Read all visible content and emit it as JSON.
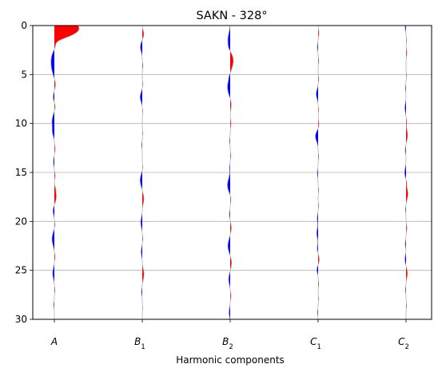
{
  "chart_data": {
    "type": "area",
    "title": "SAKN - 328°",
    "xlabel": "Harmonic components",
    "ylabel": "",
    "ylim": [
      30,
      0
    ],
    "yticks": [
      "0",
      "5",
      "10",
      "15",
      "20",
      "25",
      "30"
    ],
    "ytick_values": [
      0,
      5,
      10,
      15,
      20,
      25,
      30
    ],
    "grid": "horizontal",
    "positive_color": "#ff0000",
    "negative_color": "#0000ff",
    "trace_color": "#aaaaaa",
    "categories": [
      {
        "base": "A",
        "sub": ""
      },
      {
        "base": "B",
        "sub": "1"
      },
      {
        "base": "B",
        "sub": "2"
      },
      {
        "base": "C",
        "sub": "1"
      },
      {
        "base": "C",
        "sub": "2"
      }
    ],
    "amplitude_scale_note": "",
    "series": [
      {
        "name": "",
        "pulses": [
          [
            0.3,
            31.0,
            0.9
          ],
          [
            1.6,
            -6.0,
            0.35
          ],
          [
            3.3,
            -3.5,
            0.7
          ],
          [
            4.4,
            -2.5,
            0.6
          ],
          [
            6.0,
            1.5,
            0.4
          ],
          [
            7.3,
            -1.5,
            0.4
          ],
          [
            8.3,
            1.2,
            0.35
          ],
          [
            9.8,
            -3.0,
            0.6
          ],
          [
            10.9,
            -2.0,
            0.4
          ],
          [
            12.6,
            1.0,
            0.35
          ],
          [
            13.9,
            -1.2,
            0.4
          ],
          [
            15.3,
            1.0,
            0.3
          ],
          [
            16.7,
            1.0,
            0.3
          ],
          [
            17.5,
            2.5,
            0.5
          ],
          [
            18.9,
            -1.8,
            0.4
          ],
          [
            20.4,
            1.0,
            0.3
          ],
          [
            21.8,
            -3.0,
            0.6
          ],
          [
            23.6,
            1.0,
            0.35
          ],
          [
            25.3,
            -2.2,
            0.5
          ],
          [
            27.0,
            0.8,
            0.3
          ],
          [
            28.5,
            -0.8,
            0.3
          ]
        ]
      },
      {
        "name": "",
        "pulses": [
          [
            0.9,
            2.0,
            0.35
          ],
          [
            2.2,
            -2.5,
            0.45
          ],
          [
            4.1,
            0.8,
            0.3
          ],
          [
            6.0,
            0.7,
            0.3
          ],
          [
            7.3,
            -2.8,
            0.45
          ],
          [
            8.7,
            0.6,
            0.3
          ],
          [
            11.0,
            0.6,
            0.3
          ],
          [
            12.2,
            -0.8,
            0.3
          ],
          [
            14.5,
            0.7,
            0.3
          ],
          [
            15.8,
            -2.8,
            0.55
          ],
          [
            17.7,
            2.0,
            0.5
          ],
          [
            20.1,
            -2.0,
            0.5
          ],
          [
            21.8,
            0.8,
            0.3
          ],
          [
            23.1,
            -1.5,
            0.45
          ],
          [
            25.4,
            2.2,
            0.5
          ],
          [
            27.2,
            -1.0,
            0.35
          ],
          [
            28.9,
            0.5,
            0.3
          ]
        ]
      },
      {
        "name": "",
        "pulses": [
          [
            1.5,
            -3.0,
            0.7
          ],
          [
            2.3,
            -1.0,
            0.3
          ],
          [
            3.6,
            4.0,
            0.7
          ],
          [
            5.2,
            -0.8,
            0.3
          ],
          [
            6.3,
            -3.5,
            0.7
          ],
          [
            8.0,
            1.5,
            0.5
          ],
          [
            10.0,
            1.0,
            0.35
          ],
          [
            11.8,
            -0.8,
            0.3
          ],
          [
            13.3,
            0.8,
            0.3
          ],
          [
            14.5,
            -0.8,
            0.3
          ],
          [
            16.3,
            -3.5,
            0.65
          ],
          [
            17.6,
            1.2,
            0.4
          ],
          [
            19.3,
            -1.0,
            0.35
          ],
          [
            20.7,
            1.5,
            0.4
          ],
          [
            22.5,
            -3.0,
            0.6
          ],
          [
            24.2,
            1.8,
            0.5
          ],
          [
            25.9,
            -2.0,
            0.5
          ],
          [
            27.6,
            1.0,
            0.35
          ],
          [
            29.3,
            -1.5,
            0.45
          ]
        ]
      },
      {
        "name": "",
        "pulses": [
          [
            0.8,
            1.0,
            0.35
          ],
          [
            2.2,
            -1.0,
            0.35
          ],
          [
            3.6,
            0.8,
            0.3
          ],
          [
            5.5,
            0.8,
            0.3
          ],
          [
            7.0,
            -2.5,
            0.45
          ],
          [
            8.6,
            0.7,
            0.3
          ],
          [
            10.2,
            1.2,
            0.4
          ],
          [
            11.3,
            -3.5,
            0.5
          ],
          [
            13.4,
            0.7,
            0.3
          ],
          [
            15.1,
            -1.0,
            0.35
          ],
          [
            16.8,
            0.7,
            0.3
          ],
          [
            18.4,
            0.7,
            0.3
          ],
          [
            19.7,
            -1.2,
            0.4
          ],
          [
            21.2,
            -1.8,
            0.45
          ],
          [
            22.8,
            -1.2,
            0.4
          ],
          [
            23.9,
            1.5,
            0.45
          ],
          [
            24.9,
            -1.8,
            0.35
          ],
          [
            26.4,
            0.8,
            0.3
          ],
          [
            27.9,
            0.6,
            0.3
          ],
          [
            29.3,
            -0.8,
            0.3
          ]
        ]
      },
      {
        "name": "",
        "pulses": [
          [
            0.2,
            -1.2,
            0.3
          ],
          [
            1.5,
            0.6,
            0.3
          ],
          [
            2.8,
            1.0,
            0.35
          ],
          [
            5.1,
            0.6,
            0.3
          ],
          [
            6.4,
            -0.8,
            0.3
          ],
          [
            8.4,
            -1.5,
            0.45
          ],
          [
            9.8,
            0.8,
            0.3
          ],
          [
            11.2,
            2.0,
            0.5
          ],
          [
            12.7,
            -1.0,
            0.35
          ],
          [
            15.0,
            -1.8,
            0.45
          ],
          [
            16.0,
            0.8,
            0.3
          ],
          [
            17.2,
            2.5,
            0.5
          ],
          [
            18.8,
            -0.8,
            0.3
          ],
          [
            20.7,
            1.0,
            0.35
          ],
          [
            22.3,
            -1.0,
            0.35
          ],
          [
            23.9,
            -1.5,
            0.4
          ],
          [
            25.3,
            1.8,
            0.45
          ],
          [
            27.0,
            -0.8,
            0.3
          ],
          [
            28.6,
            0.7,
            0.3
          ]
        ]
      }
    ]
  }
}
